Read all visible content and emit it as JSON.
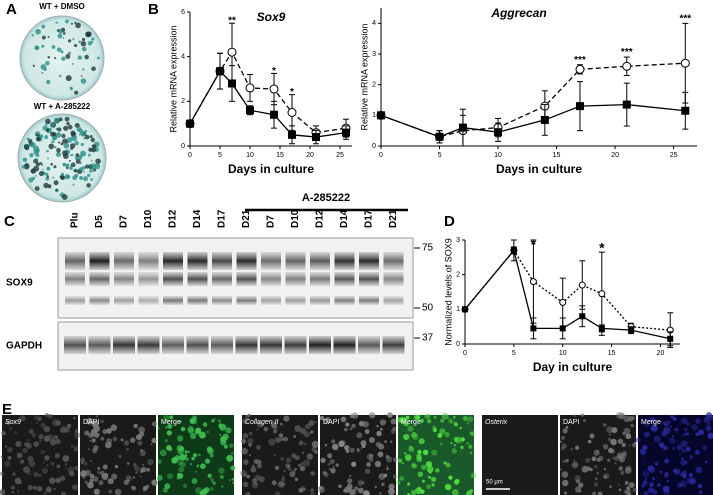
{
  "panel_labels": [
    "A",
    "B",
    "C",
    "D",
    "E"
  ],
  "panel_a": {
    "captions": [
      "WT + DMSO",
      "WT + A-285222"
    ]
  },
  "panel_c": {
    "lanes": [
      "Plu",
      "D5",
      "D7",
      "D10",
      "D12",
      "D14",
      "D17",
      "D21",
      "D7",
      "D10",
      "D12",
      "D14",
      "D17",
      "D21"
    ],
    "group_label": "A-285222",
    "rows": [
      "SOX9",
      "GAPDH"
    ],
    "markers": [
      "75",
      "50",
      "37"
    ]
  },
  "panel_e": {
    "labels": [
      "Sox9",
      "DAPI",
      "Merge",
      "Collagen II",
      "DAPI",
      "Merge",
      "Osterix",
      "DAPI",
      "Merge"
    ],
    "scale_bar": "50 µm"
  },
  "chart_data": [
    {
      "type": "line",
      "title": "Sox9",
      "xlabel": "Days in culture",
      "ylabel": "Relative mRNA expression",
      "xlim": [
        0,
        27
      ],
      "xticks": [
        0,
        5,
        10,
        15,
        20,
        25
      ],
      "ylim": [
        0,
        6
      ],
      "yticks": [
        0,
        2,
        4,
        6
      ],
      "series": [
        {
          "style": "dashed",
          "marker": "open",
          "color": "#000000",
          "x": [
            0,
            5,
            7,
            10,
            14,
            17,
            21,
            26
          ],
          "values": [
            1,
            3.35,
            4.2,
            2.6,
            2.55,
            1.5,
            0.6,
            0.8
          ],
          "errors": [
            0,
            0.8,
            1.3,
            0.6,
            0.7,
            0.8,
            0.3,
            0.4
          ]
        },
        {
          "style": "solid",
          "marker": "filled",
          "color": "#000000",
          "x": [
            0,
            5,
            7,
            10,
            14,
            17,
            21,
            26
          ],
          "values": [
            1,
            3.35,
            2.8,
            1.6,
            1.4,
            0.5,
            0.4,
            0.6
          ],
          "errors": [
            0,
            0.8,
            0.8,
            0.2,
            0.6,
            0.4,
            0.3,
            0.3
          ]
        }
      ],
      "annotations": [
        {
          "text": "**",
          "x": 7,
          "y": 5.6
        },
        {
          "text": "*",
          "x": 14,
          "y": 3.35
        },
        {
          "text": "*",
          "x": 17,
          "y": 2.4
        }
      ]
    },
    {
      "type": "line",
      "title": "Aggrecan",
      "xlabel": "Days in culture",
      "ylabel": "Relative mRNA expression",
      "xlim": [
        0,
        27
      ],
      "xticks": [
        0,
        5,
        10,
        15,
        20,
        25
      ],
      "ylim": [
        0,
        4.5
      ],
      "yticks": [
        0,
        1,
        2,
        3,
        4
      ],
      "series": [
        {
          "style": "dashed",
          "marker": "open",
          "color": "#000000",
          "x": [
            0,
            5,
            7,
            10,
            14,
            17,
            21,
            26
          ],
          "values": [
            1,
            0.3,
            0.5,
            0.6,
            1.3,
            2.5,
            2.6,
            2.7
          ],
          "errors": [
            0,
            0.2,
            0.5,
            0.3,
            0.5,
            0.15,
            0.3,
            1.3
          ]
        },
        {
          "style": "solid",
          "marker": "filled",
          "color": "#000000",
          "x": [
            0,
            5,
            7,
            10,
            14,
            17,
            21,
            26
          ],
          "values": [
            1,
            0.3,
            0.6,
            0.45,
            0.85,
            1.3,
            1.35,
            1.15
          ],
          "errors": [
            0,
            0.2,
            0.6,
            0.3,
            0.5,
            0.8,
            0.7,
            0.6
          ]
        }
      ],
      "annotations": [
        {
          "text": "***",
          "x": 17,
          "y": 2.8
        },
        {
          "text": "***",
          "x": 21,
          "y": 3.05
        },
        {
          "text": "***",
          "x": 26,
          "y": 4.15
        }
      ]
    },
    {
      "type": "line",
      "xlabel": "Day in culture",
      "ylabel": "Normalized levels of SOX9",
      "xlim": [
        0,
        22
      ],
      "xticks": [
        0,
        5,
        10,
        15,
        20
      ],
      "ylim": [
        0,
        3
      ],
      "yticks": [
        0,
        1,
        2,
        3
      ],
      "series": [
        {
          "style": "dotted",
          "marker": "open",
          "color": "#000000",
          "x": [
            0,
            5,
            7,
            10,
            12,
            14,
            17,
            21
          ],
          "values": [
            1,
            2.7,
            1.8,
            1.2,
            1.7,
            1.45,
            0.5,
            0.4
          ],
          "errors": [
            0,
            0.3,
            1.2,
            0.7,
            0.7,
            1.2,
            0.1,
            0.5
          ]
        },
        {
          "style": "solid",
          "marker": "filled",
          "color": "#000000",
          "x": [
            0,
            5,
            7,
            10,
            12,
            14,
            17,
            21
          ],
          "values": [
            1,
            2.7,
            0.45,
            0.45,
            0.8,
            0.45,
            0.4,
            0.15
          ],
          "errors": [
            0,
            0.1,
            0.3,
            0.3,
            0.3,
            0.1,
            0.1,
            0.2
          ]
        }
      ],
      "annotations": [
        {
          "text": "*",
          "x": 7,
          "y": 2.85
        },
        {
          "text": "*",
          "x": 14,
          "y": 2.75
        }
      ]
    }
  ]
}
